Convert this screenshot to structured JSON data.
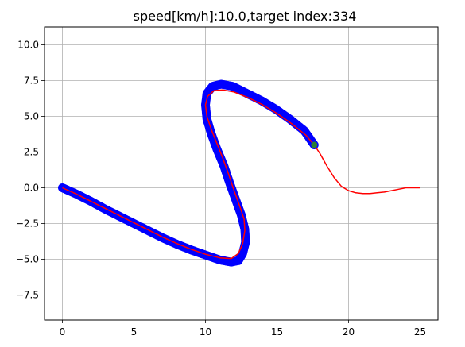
{
  "chart_data": {
    "type": "line",
    "title": "speed[km/h]:10.0,target index:334",
    "xlabel": "",
    "ylabel": "",
    "xlim": [
      -1.25,
      26.25
    ],
    "ylim": [
      -9.25,
      11.25
    ],
    "xticks": [
      0,
      5,
      10,
      15,
      20,
      25
    ],
    "yticks": [
      -7.5,
      -5.0,
      -2.5,
      0.0,
      2.5,
      5.0,
      7.5,
      10.0
    ],
    "xtick_labels": [
      "0",
      "5",
      "10",
      "15",
      "20",
      "25"
    ],
    "ytick_labels": [
      "−7.5",
      "−5.0",
      "−2.5",
      "0.0",
      "2.5",
      "5.0",
      "7.5",
      "10.0"
    ],
    "grid": true,
    "legend": "none",
    "series": [
      {
        "role": "reference course",
        "color": "#ff0000",
        "style": "line",
        "x": [
          0,
          1,
          2,
          3,
          4,
          5,
          6,
          7,
          8,
          9,
          10,
          11,
          11.8,
          12.3,
          12.6,
          12.75,
          12.7,
          12.4,
          12.0,
          11.6,
          11.2,
          10.8,
          10.4,
          10.1,
          10.0,
          10.15,
          10.6,
          11.2,
          12.0,
          13.0,
          14.0,
          15.0,
          16.0,
          17.0,
          17.6,
          18.0,
          18.5,
          19.0,
          19.5,
          20.0,
          20.5,
          21.0,
          21.5,
          22.0,
          22.5,
          23.0,
          23.5,
          24.0,
          24.5,
          25.0
        ],
        "y": [
          0,
          -0.45,
          -0.95,
          -1.45,
          -1.95,
          -2.45,
          -2.95,
          -3.45,
          -3.9,
          -4.3,
          -4.65,
          -4.9,
          -4.95,
          -4.6,
          -3.9,
          -3.0,
          -2.2,
          -1.3,
          -0.2,
          1.0,
          2.1,
          3.1,
          4.1,
          5.0,
          5.8,
          6.4,
          6.8,
          6.85,
          6.7,
          6.3,
          5.8,
          5.2,
          4.5,
          3.7,
          3.0,
          2.4,
          1.5,
          0.7,
          0.1,
          -0.2,
          -0.35,
          -0.4,
          -0.4,
          -0.35,
          -0.3,
          -0.2,
          -0.1,
          0.0,
          0.0,
          0.0
        ]
      },
      {
        "role": "vehicle trajectory",
        "color": "#0000ff",
        "style": "markers",
        "x": [
          0,
          1,
          2,
          3,
          4,
          5,
          6,
          7,
          8,
          9,
          10,
          11,
          11.8,
          12.3,
          12.6,
          12.8,
          12.75,
          12.5,
          12.1,
          11.7,
          11.3,
          10.8,
          10.4,
          10.1,
          10.0,
          10.1,
          10.5,
          11.1,
          11.9,
          12.9,
          13.9,
          14.9,
          15.9,
          16.9,
          17.6
        ],
        "y": [
          0,
          -0.45,
          -0.95,
          -1.5,
          -2.0,
          -2.5,
          -3.0,
          -3.5,
          -3.95,
          -4.35,
          -4.7,
          -5.05,
          -5.2,
          -5.1,
          -4.6,
          -3.8,
          -2.9,
          -1.9,
          -0.8,
          0.3,
          1.5,
          2.7,
          3.8,
          4.8,
          5.8,
          6.6,
          7.1,
          7.25,
          7.1,
          6.6,
          6.1,
          5.5,
          4.8,
          4.0,
          3.0
        ]
      }
    ]
  }
}
